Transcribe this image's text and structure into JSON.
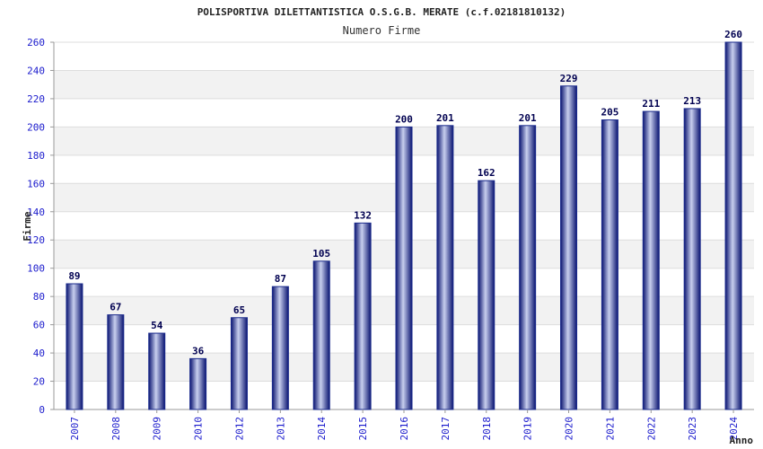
{
  "chart_data": {
    "type": "bar",
    "title": "POLISPORTIVA DILETTANTISTICA O.S.G.B. MERATE (c.f.02181810132)",
    "subtitle": "Numero Firme",
    "xlabel": "Anno",
    "ylabel": "Firme",
    "ylim": [
      0,
      260
    ],
    "yticks": [
      0,
      20,
      40,
      60,
      80,
      100,
      120,
      140,
      160,
      180,
      200,
      220,
      240,
      260
    ],
    "categories": [
      "2007",
      "2008",
      "2009",
      "2010",
      "2012",
      "2013",
      "2014",
      "2015",
      "2016",
      "2017",
      "2018",
      "2019",
      "2020",
      "2021",
      "2022",
      "2023",
      "2024"
    ],
    "values": [
      89,
      67,
      54,
      36,
      65,
      87,
      105,
      132,
      200,
      201,
      162,
      201,
      229,
      205,
      211,
      213,
      260
    ],
    "grid": true,
    "bar_color": "#1a2a8c",
    "band_color": "#f2f2f2"
  }
}
